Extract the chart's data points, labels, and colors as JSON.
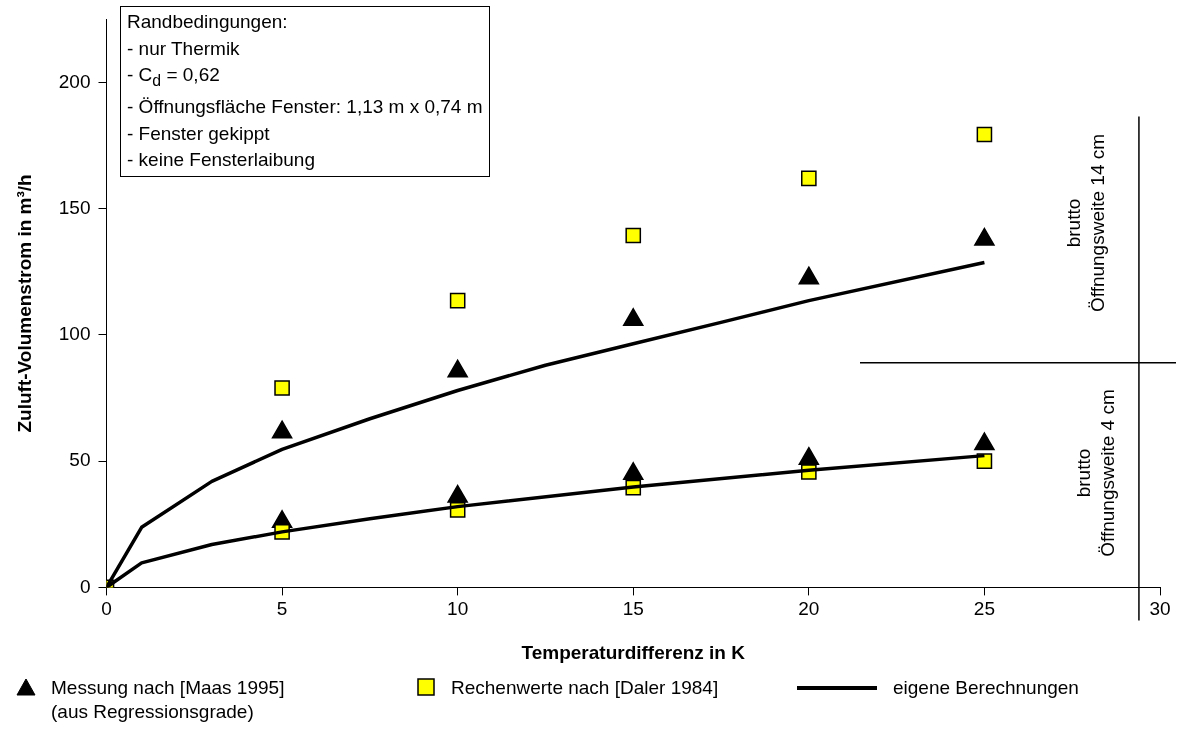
{
  "chart_data": {
    "type": "scatter",
    "xlabel": "Temperaturdifferenz in K",
    "ylabel": "Zuluft-Volumenstrom in m³/h",
    "xlim": [
      0,
      30
    ],
    "xticks": [
      0,
      5,
      10,
      15,
      20,
      25,
      30
    ],
    "ylim": [
      0,
      225
    ],
    "yticks": [
      0,
      50,
      100,
      150,
      200
    ],
    "grid": false,
    "legend": "bottom",
    "ref_lines": [
      {
        "axis": "x",
        "value": 29.4,
        "color": "#000000"
      },
      {
        "axis": "y",
        "value": 89,
        "color": "#000000"
      }
    ],
    "annotations": [
      "Randbedingungen:\n- nur Thermik\n- C$_{d}$ = 0,62\n- Öffnungsfläche Fenster: 1,13 m x 0,74 m\n- Fenster gekippt\n- keine Fensterlaibung",
      "brutto\nÖffnungsweite 14 cm",
      "brutto\nÖffnungsweite 4 cm"
    ],
    "series": [
      {
        "name": "Messung nach [Maas 1995]\n(aus Regressionsgrade)",
        "marker": "triangle",
        "color": "#000000",
        "x": [
          5,
          10,
          15,
          20,
          25,
          5,
          10,
          15,
          20,
          25
        ],
        "values": [
          61.5,
          85.6,
          106,
          122.5,
          137.8,
          26,
          36,
          45,
          51,
          56.8
        ]
      },
      {
        "name": "Rechenwerte nach [Daler 1984]",
        "marker": "square",
        "color": "#ffff00",
        "x": [
          0,
          5,
          10,
          15,
          20,
          25,
          5,
          10,
          15,
          20,
          25
        ],
        "values": [
          0,
          79,
          113.6,
          139.4,
          162,
          179.4,
          22,
          30.7,
          39.5,
          45.7,
          50
        ]
      },
      {
        "name": "eigene Berechnungen",
        "type": "line",
        "marker": "none",
        "color": "#000000",
        "x": [
          0,
          1,
          3,
          5,
          7.5,
          10,
          12.5,
          15,
          17.5,
          20,
          25
        ],
        "values": [
          0,
          23.8,
          42,
          54.7,
          66.8,
          78,
          88,
          96.5,
          105,
          113.6,
          128.7
        ]
      },
      {
        "type": "line",
        "marker": "none",
        "color": "#000000",
        "x": [
          0,
          1,
          3,
          5,
          7.5,
          10,
          15,
          20,
          25
        ],
        "values": [
          0,
          9.7,
          17,
          22,
          27.2,
          32,
          39.8,
          46.4,
          52.2
        ]
      }
    ]
  }
}
